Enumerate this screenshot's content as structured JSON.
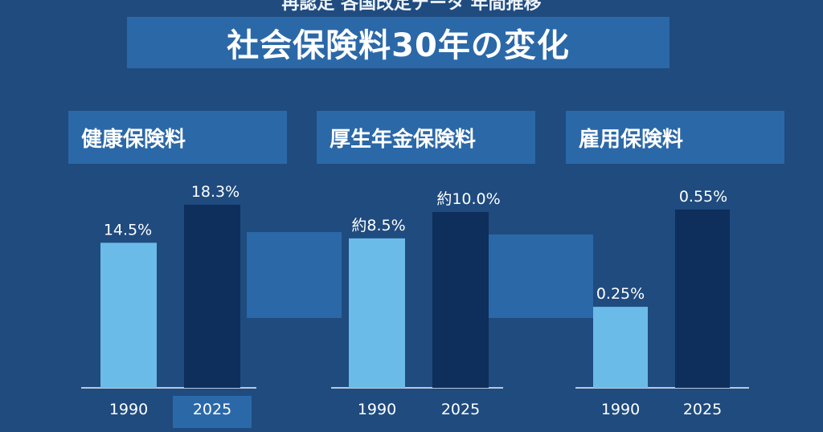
{
  "header": {
    "top_text": "再認定 各国改定データ 年間推移",
    "title": "社会保険料30年の変化"
  },
  "colors": {
    "background": "#1f4b7f",
    "box": "#2b68a8",
    "bar_1990": "#6bbbe8",
    "bar_2025": "#0e2e5c",
    "axis": "#b8c8dc"
  },
  "chart_data": [
    {
      "type": "bar",
      "title": "健康保険料",
      "categories": [
        "1990",
        "2025"
      ],
      "values": [
        14.5,
        18.3
      ],
      "value_labels": [
        "14.5%",
        "18.3%"
      ],
      "unit": "%",
      "ylim": [
        0,
        18.3
      ],
      "grid": false,
      "legend": "none"
    },
    {
      "type": "bar",
      "title": "厚生年金保険料",
      "categories": [
        "1990",
        "2025"
      ],
      "values": [
        8.5,
        10.0
      ],
      "value_labels": [
        "約8.5%",
        "約10.0%"
      ],
      "unit": "%",
      "ylim": [
        0,
        10.0
      ],
      "grid": false,
      "legend": "none"
    },
    {
      "type": "bar",
      "title": "雇用保険料",
      "categories": [
        "1990",
        "2025"
      ],
      "values": [
        0.25,
        0.55
      ],
      "value_labels": [
        "0.25%",
        "0.55%"
      ],
      "unit": "%",
      "ylim": [
        0,
        0.55
      ],
      "grid": false,
      "legend": "none"
    }
  ]
}
